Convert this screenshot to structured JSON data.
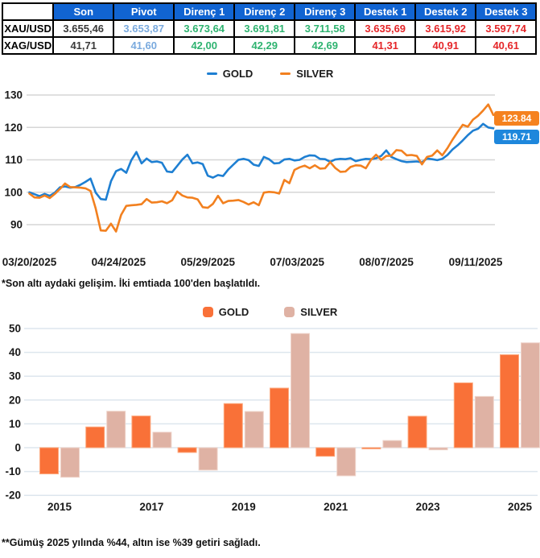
{
  "table": {
    "columns": [
      "",
      "Son",
      "Pivot",
      "Direnç 1",
      "Direnç 2",
      "Direnç 3",
      "Destek 1",
      "Destek 2",
      "Destek 3"
    ],
    "rows": [
      {
        "label": "XAU/USD",
        "values": [
          "3.655,46",
          "3.653,87",
          "3.673,64",
          "3.691,81",
          "3.711,58",
          "3.635,69",
          "3.615,92",
          "3.597,74"
        ]
      },
      {
        "label": "XAG/USD",
        "values": [
          "41,71",
          "41,60",
          "42,00",
          "42,29",
          "42,69",
          "41,31",
          "40,91",
          "40,61"
        ]
      }
    ],
    "value_colors": [
      "#3a3a3a",
      "#7aaade",
      "#2eb370",
      "#2eb370",
      "#2eb370",
      "#e52528",
      "#e52528",
      "#e52528"
    ],
    "header_bg": "#1164d2"
  },
  "footnote1": "*Son altı aydaki gelişim. İki emtiada 100'den başlatıldı.",
  "footnote2": "**Gümüş 2025 yılında %44, altın ise %39 getiri sağladı.",
  "chart_data": [
    {
      "type": "line",
      "title": "Son altı aydaki gelişim (100 = 03/20/2025)",
      "legend": [
        "GOLD",
        "SILVER"
      ],
      "legend_position": "top-center",
      "grid": "horizontal",
      "yticks": [
        130,
        120,
        110,
        100,
        90
      ],
      "ylim": [
        85.5,
        131.2
      ],
      "x_tick_labels": [
        "03/20/2025",
        "04/24/2025",
        "05/29/2025",
        "07/03/2025",
        "08/07/2025",
        "09/11/2025"
      ],
      "x_range_note": "daily values 03/20/2025 - 09/17/2025, both commodities indexed to 100",
      "grid_color": "#d6d6d6",
      "series": [
        {
          "name": "GOLD",
          "color": "#1e7fd2",
          "end_label": "119.71",
          "end_label_bg": "#1e87dc",
          "values": [
            100,
            99.4,
            98.8,
            99.5,
            98.9,
            99.9,
            101.5,
            101.8,
            101.4,
            101.6,
            102.3,
            103.2,
            104.2,
            99.9,
            97.9,
            97.7,
            103.4,
            106.5,
            107.2,
            106.0,
            109.9,
            112.4,
            108.9,
            110.4,
            109.3,
            109.5,
            109.1,
            106.4,
            106.2,
            108.1,
            110.1,
            111.6,
            108.9,
            109.2,
            108.7,
            105.1,
            104.5,
            105.3,
            105.0,
            107.0,
            108.5,
            110.0,
            110.3,
            109.9,
            108.5,
            108.1,
            110.9,
            110.2,
            108.9,
            109.0,
            110.1,
            110.3,
            109.8,
            110.0,
            110.9,
            111.4,
            111.3,
            110.3,
            110.2,
            109.4,
            110.1,
            110.3,
            110.2,
            110.5,
            109.6,
            110.0,
            110.3,
            110.2,
            110.5,
            111.2,
            112.9,
            110.9,
            110.2,
            109.6,
            109.3,
            109.4,
            109.5,
            109.2,
            110.4,
            110.2,
            109.9,
            110.3,
            111.5,
            113.2,
            114.5,
            116.0,
            117.6,
            119.0,
            119.6,
            121.1,
            120.0,
            119.71
          ]
        },
        {
          "name": "SILVER",
          "color": "#f2801f",
          "end_label": "123.84",
          "end_label_bg": "#f5821f",
          "values": [
            99.6,
            98.4,
            98.3,
            99.0,
            98.2,
            99.5,
            101.0,
            102.7,
            101.6,
            101.5,
            101.4,
            101.2,
            100.4,
            95.0,
            88.2,
            88.1,
            90.3,
            87.9,
            93.0,
            95.8,
            96.0,
            96.1,
            96.3,
            97.9,
            96.8,
            96.9,
            97.2,
            96.6,
            97.5,
            100.2,
            99.0,
            98.4,
            98.3,
            97.8,
            95.4,
            95.2,
            96.4,
            98.9,
            96.6,
            97.3,
            97.4,
            97.6,
            97.0,
            96.2,
            96.9,
            96.0,
            99.9,
            100.1,
            100.0,
            99.6,
            103.8,
            102.8,
            106.9,
            107.7,
            108.2,
            107.4,
            108.3,
            107.3,
            107.4,
            109.3,
            107.5,
            106.3,
            106.4,
            107.8,
            108.3,
            108.2,
            107.4,
            110.0,
            111.6,
            110.0,
            111.2,
            111.3,
            113.0,
            112.8,
            111.4,
            111.5,
            111.2,
            108.6,
            110.9,
            111.3,
            112.9,
            111.4,
            113.6,
            116.2,
            118.6,
            120.8,
            120.2,
            122.4,
            123.6,
            125.2,
            127.1,
            123.84
          ]
        }
      ]
    },
    {
      "type": "bar",
      "title": "Yıllık getiri (%)",
      "legend": [
        "GOLD",
        "SILVER"
      ],
      "legend_position": "top-center",
      "grid": "horizontal",
      "categories": [
        "2015",
        "2016",
        "2017",
        "2018",
        "2019",
        "2020",
        "2021",
        "2022",
        "2023",
        "2024",
        "2025"
      ],
      "x_tick_labels": [
        "2015",
        "2017",
        "2019",
        "2021",
        "2023",
        "2025"
      ],
      "yticks": [
        50,
        40,
        30,
        20,
        10,
        0,
        -10,
        -20
      ],
      "ylim": [
        -20,
        52
      ],
      "grid_color": "#dde6ee",
      "series": [
        {
          "name": "GOLD",
          "color": "#f97138",
          "edge": "#fca97f",
          "values": [
            -11.0,
            8.7,
            13.3,
            -2.0,
            18.5,
            25.0,
            -3.6,
            -0.5,
            13.2,
            27.2,
            39.0
          ]
        },
        {
          "name": "SILVER",
          "color": "#dfb2a4",
          "edge": "#efd4ca",
          "values": [
            -12.4,
            15.3,
            6.5,
            -9.4,
            15.2,
            47.9,
            -11.8,
            3.0,
            -0.9,
            21.5,
            44.0
          ]
        }
      ]
    }
  ]
}
